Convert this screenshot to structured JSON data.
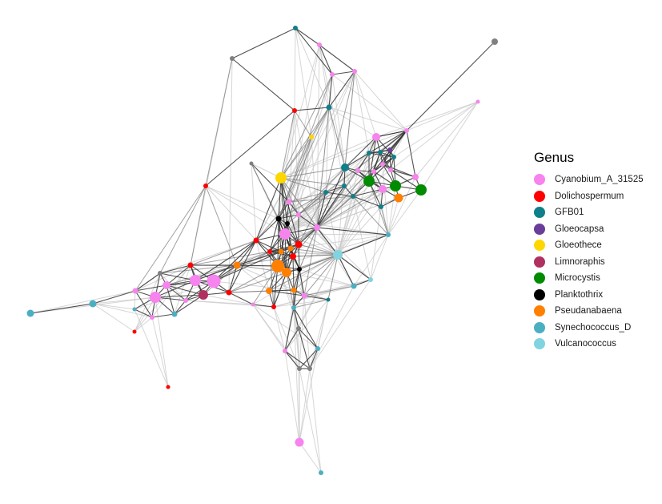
{
  "legend": {
    "title": "Genus",
    "items": [
      {
        "label": "Cyanobium_A_31525",
        "color": "#F783EE"
      },
      {
        "label": "Dolichospermum",
        "color": "#FF0000"
      },
      {
        "label": "GFB01",
        "color": "#0F7F8A"
      },
      {
        "label": "Gloeocapsa",
        "color": "#6A3D9A"
      },
      {
        "label": "Gloeothece",
        "color": "#FFD700"
      },
      {
        "label": "Limnoraphis",
        "color": "#B03060"
      },
      {
        "label": "Microcystis",
        "color": "#008B00"
      },
      {
        "label": "Planktothrix",
        "color": "#000000"
      },
      {
        "label": "Pseudanabaena",
        "color": "#FF7F00"
      },
      {
        "label": "Synechococcus_D",
        "color": "#4BAFC2"
      },
      {
        "label": "Vulcanococcus",
        "color": "#7FD4E0"
      }
    ]
  },
  "colors": {
    "unclassified_node": "#808080",
    "edge_dark": "#333333",
    "edge_mid": "#777777",
    "edge_light": "#c8c8c8"
  }
}
